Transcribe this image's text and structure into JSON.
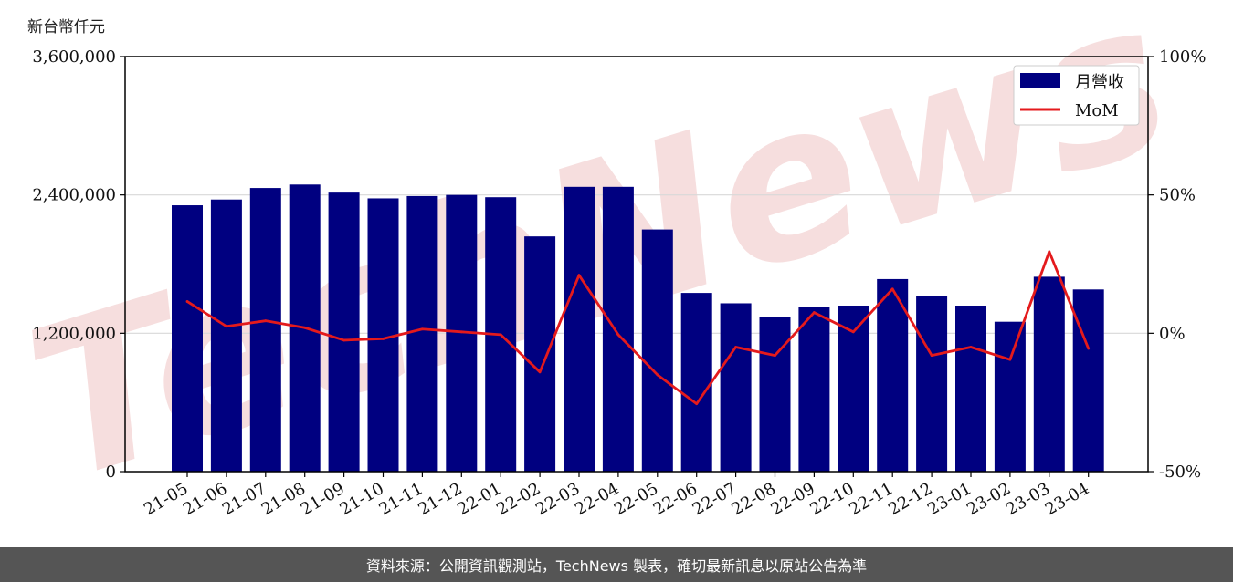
{
  "unit_label": "新台幣仟元",
  "footer": "資料來源：公開資訊觀測站，TechNews 製表，確切最新訊息以原站公告為準",
  "watermark": "TechNews",
  "colors": {
    "bar": "#000080",
    "line": "#e41a1c",
    "grid": "#d8d8d8",
    "watermark": "#f6dede"
  },
  "chart_data": {
    "type": "bar",
    "categories": [
      "21-05",
      "21-06",
      "21-07",
      "21-08",
      "21-09",
      "21-10",
      "21-11",
      "21-12",
      "22-01",
      "22-02",
      "22-03",
      "22-04",
      "22-05",
      "22-06",
      "22-07",
      "22-08",
      "22-09",
      "22-10",
      "22-11",
      "22-12",
      "23-01",
      "23-02",
      "23-03",
      "23-04"
    ],
    "series": [
      {
        "name": "月營收",
        "type": "bar",
        "axis": "left",
        "values": [
          2310000,
          2360000,
          2460000,
          2490000,
          2420000,
          2370000,
          2390000,
          2400000,
          2380000,
          2040000,
          2470000,
          2470000,
          2100000,
          1550000,
          1460000,
          1340000,
          1430000,
          1440000,
          1670000,
          1520000,
          1440000,
          1300000,
          1690000,
          1580000
        ]
      },
      {
        "name": "MoM",
        "type": "line",
        "axis": "right",
        "values": [
          11.5,
          2.5,
          4.5,
          2,
          -2.5,
          -2,
          1.5,
          0.5,
          -0.5,
          -14,
          21,
          -0.5,
          -15,
          -25.5,
          -5,
          -8,
          7.5,
          0.5,
          16,
          -8,
          -5,
          -9.5,
          29.5,
          -5.5
        ]
      }
    ],
    "yaxis_left": {
      "range": [
        0,
        3600000
      ],
      "ticks": [
        0,
        1200000,
        2400000,
        3600000
      ],
      "tick_labels": [
        "0",
        "1,200,000",
        "2,400,000",
        "3,600,000"
      ]
    },
    "yaxis_right": {
      "range": [
        -50,
        100
      ],
      "ticks": [
        -50,
        0,
        50,
        100
      ],
      "tick_labels": [
        "-50%",
        "0%",
        "50%",
        "100%"
      ]
    },
    "grid": "horizontal",
    "legend": {
      "position": "top-right",
      "entries": [
        "月營收",
        "MoM"
      ]
    }
  }
}
